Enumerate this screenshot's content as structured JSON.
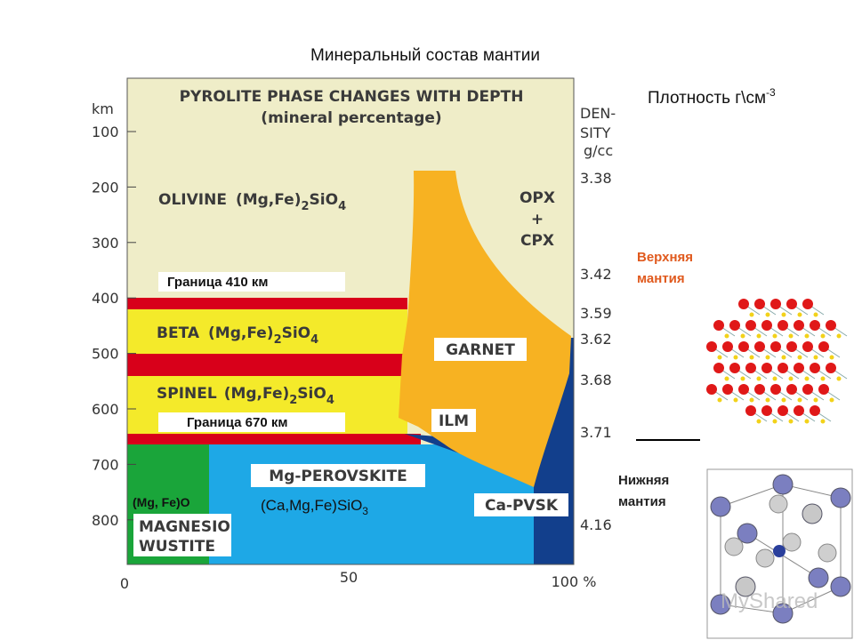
{
  "title": "Минеральный состав мантии",
  "density_label": {
    "text": "Плотность г\\см",
    "sup": "-3"
  },
  "diagram": {
    "heading": "PYROLITE PHASE CHANGES WITH DEPTH",
    "subheading": "(mineral percentage)",
    "depth_unit": "km",
    "depth_labels": [
      "100",
      "200",
      "300",
      "400",
      "500",
      "600",
      "700",
      "800"
    ],
    "density_header": [
      "DEN-",
      "SITY",
      "g/cc"
    ],
    "density_labels": [
      "3.38",
      "3.42",
      "3.59",
      "3.62",
      "3.68",
      "3.71",
      "4.16"
    ],
    "x_labels": [
      "0",
      "50",
      "100 %"
    ],
    "olivine": {
      "name": "OLIVINE",
      "formula": [
        "(Mg,Fe)",
        "2",
        "SiO",
        "4"
      ]
    },
    "beta": {
      "name": "BETA",
      "formula": [
        "(Mg,Fe)",
        "2",
        "SiO",
        "4"
      ]
    },
    "spinel": {
      "name": "SPINEL",
      "formula": [
        "(Mg,Fe)",
        "2",
        "SiO",
        "4"
      ]
    },
    "opx": [
      "OPX",
      "+",
      "CPX"
    ],
    "garnet": "GARNET",
    "ilm": "ILM",
    "perovskite": "Mg-PEROVSKITE",
    "ca_pvsk": "Ca-PVSK",
    "magnesio": [
      "MAGNESIO",
      "WUSTITE"
    ],
    "mgfeo": "(Mg, Fe)O",
    "casio": [
      "(Ca,Mg,Fe)SiO",
      "3"
    ],
    "boundaries": [
      "Граница 410 км",
      "Граница 670 км"
    ]
  },
  "side": {
    "upper": [
      "Верхняя",
      "мантия"
    ],
    "lower": [
      "Нижняя",
      "мантия"
    ]
  },
  "watermark": "MyShared"
}
